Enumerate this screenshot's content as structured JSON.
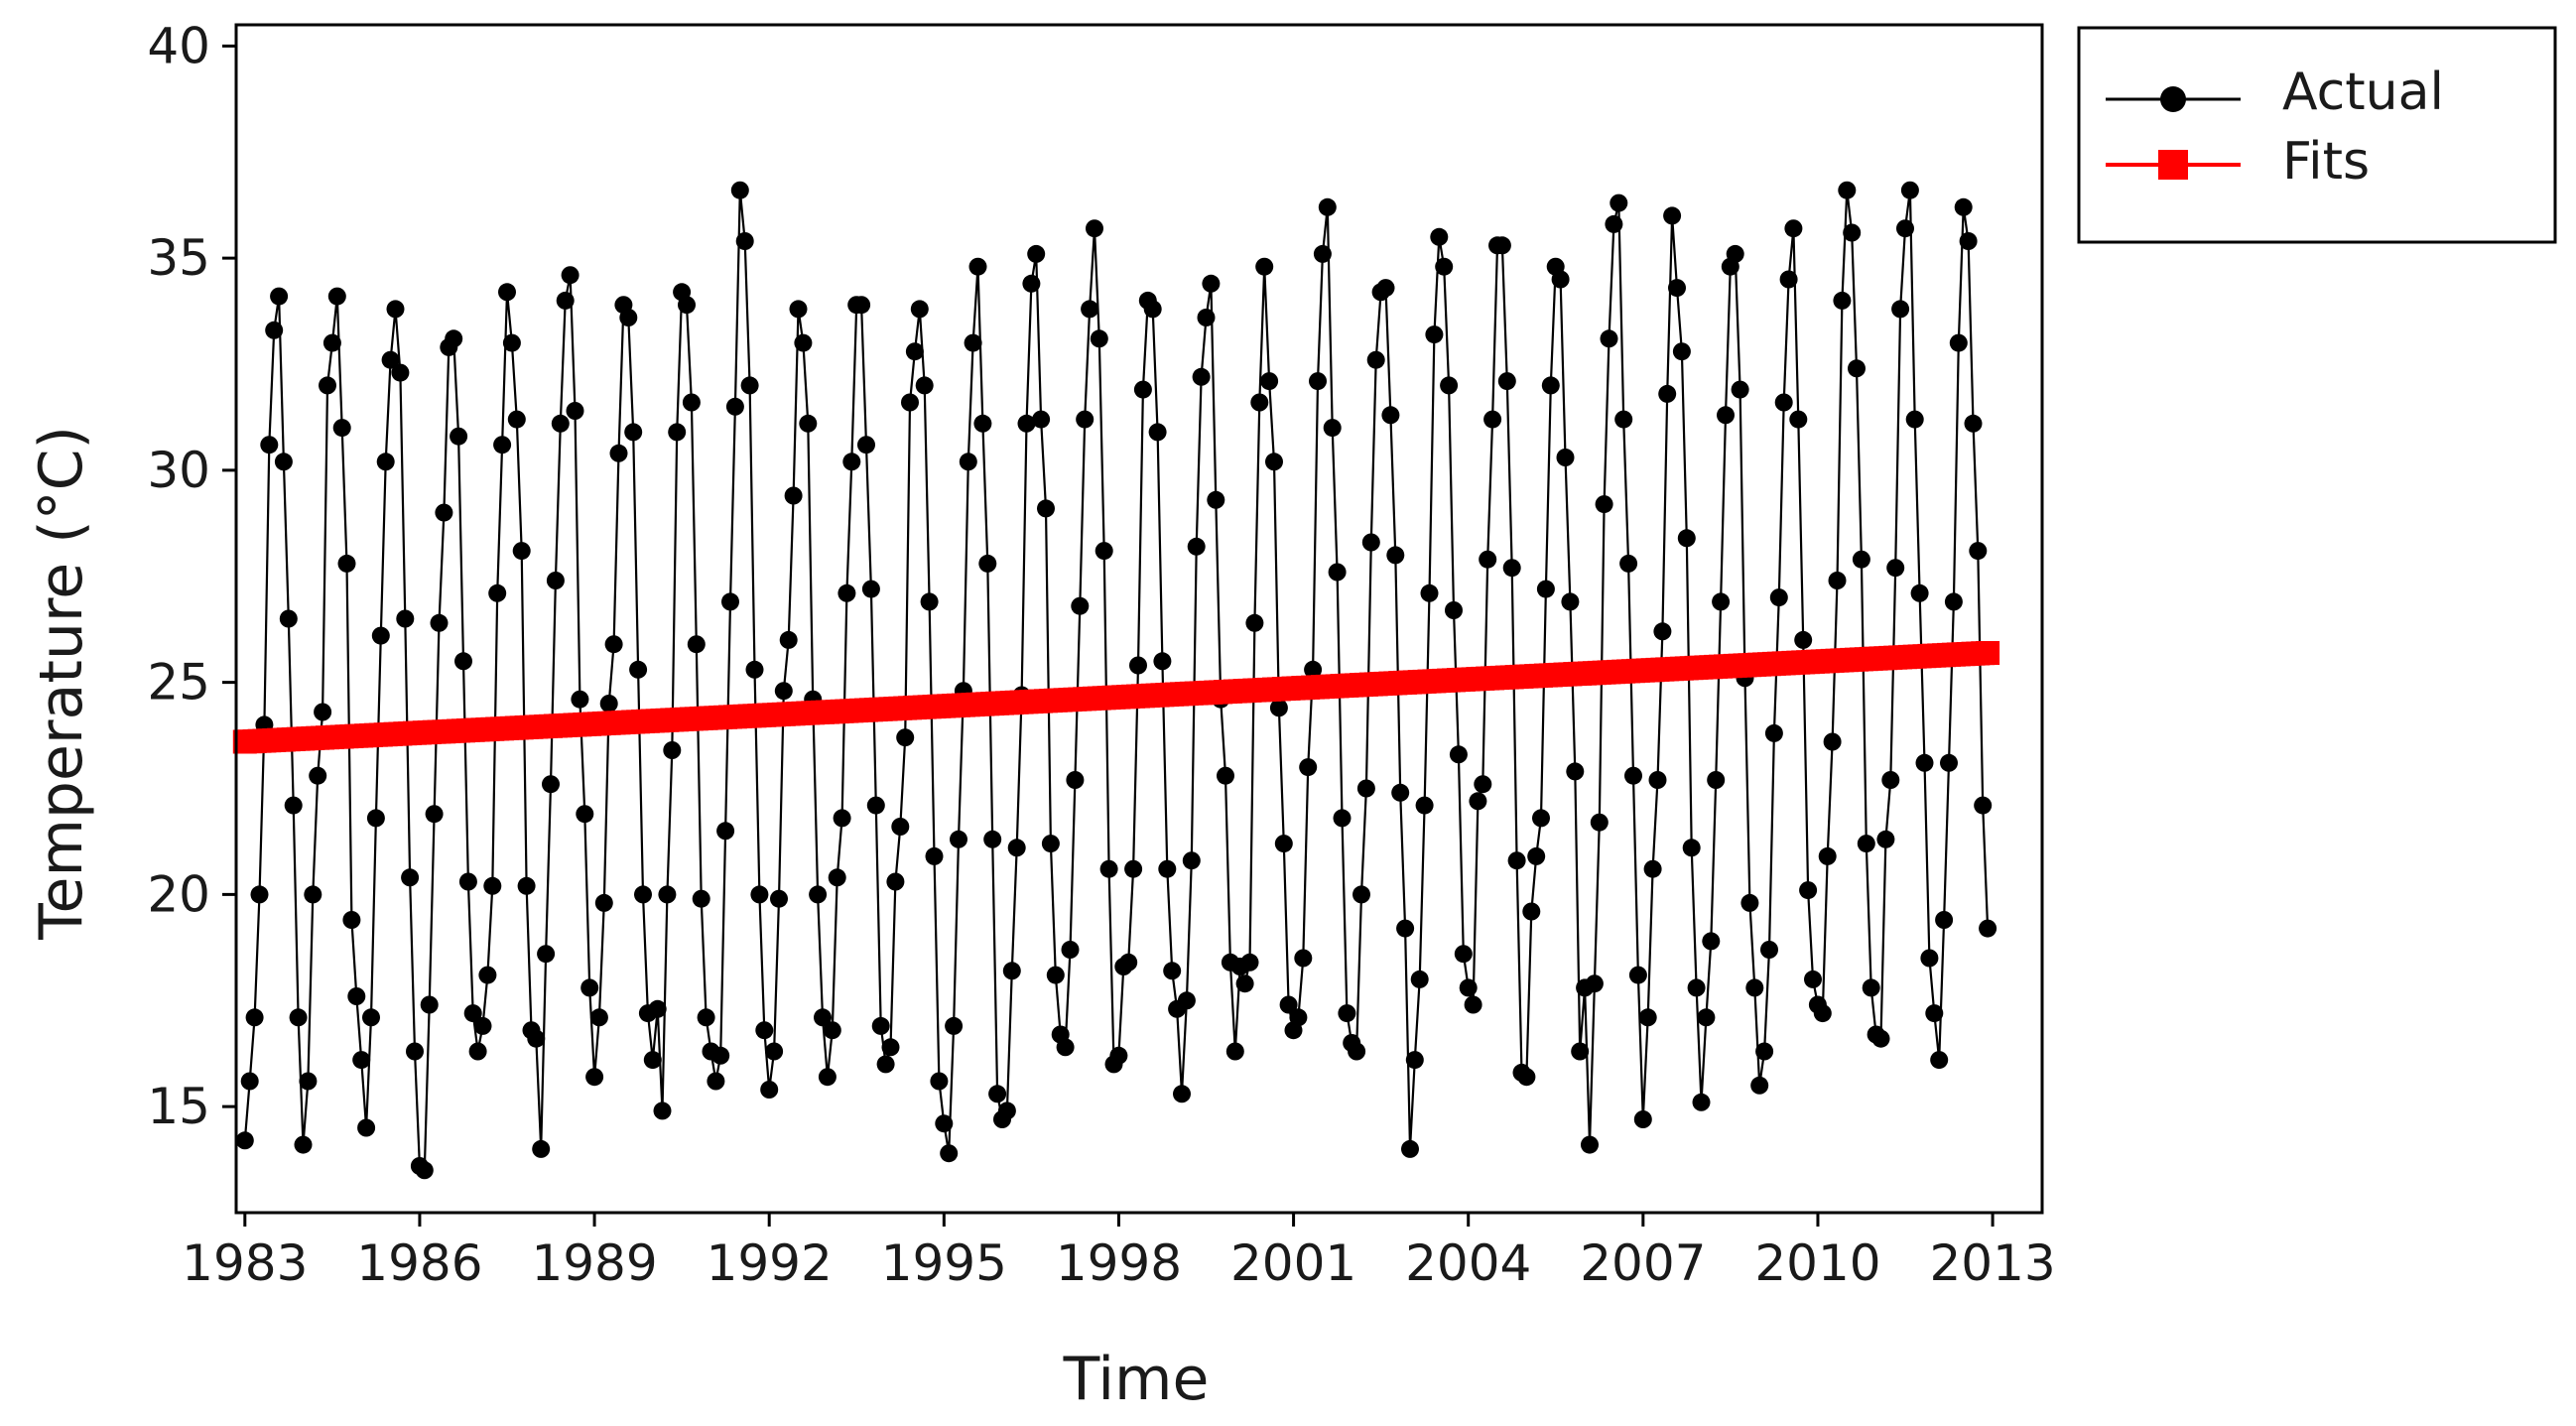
{
  "chart_data": {
    "type": "line",
    "title": "",
    "xlabel": "Time",
    "ylabel": "Temperature (°C)",
    "xlim": [
      1982.85,
      2013.85
    ],
    "ylim": [
      12.5,
      40.5
    ],
    "grid": false,
    "legend_position": "top-right (outside plot)",
    "x_ticks": [
      1983,
      1986,
      1989,
      1992,
      1995,
      1998,
      2001,
      2004,
      2007,
      2010,
      2013
    ],
    "x_tick_labels": [
      "1983",
      "1986",
      "1989",
      "1992",
      "1995",
      "1998",
      "2001",
      "2004",
      "2007",
      "2010",
      "2013"
    ],
    "y_ticks": [
      15,
      20,
      25,
      30,
      35,
      40
    ],
    "y_tick_labels": [
      "15",
      "20",
      "25",
      "30",
      "35",
      "40"
    ],
    "x_start": 1983.0,
    "x_step": 0.08333,
    "series": [
      {
        "name": "Actual",
        "color": "#000000",
        "marker": "circle",
        "values_by_year": [
          [
            14.2,
            15.6,
            17.1,
            20.0,
            24.0,
            30.6,
            33.3,
            34.1,
            30.2,
            26.5,
            22.1,
            17.1
          ],
          [
            14.1,
            15.6,
            20.0,
            22.8,
            24.3,
            32.0,
            33.0,
            34.1,
            31.0,
            27.8,
            19.4,
            17.6
          ],
          [
            16.1,
            14.5,
            17.1,
            21.8,
            26.1,
            30.2,
            32.6,
            33.8,
            32.3,
            26.5,
            20.4,
            16.3
          ],
          [
            13.6,
            13.5,
            17.4,
            21.9,
            26.4,
            29.0,
            32.9,
            33.1,
            30.8,
            25.5,
            20.3,
            17.2
          ],
          [
            16.3,
            16.9,
            18.1,
            20.2,
            27.1,
            30.6,
            34.2,
            33.0,
            31.2,
            28.1,
            20.2,
            16.8
          ],
          [
            16.6,
            14.0,
            18.6,
            22.6,
            27.4,
            31.1,
            34.0,
            34.6,
            31.4,
            24.6,
            21.9,
            17.8
          ],
          [
            15.7,
            17.1,
            19.8,
            24.5,
            25.9,
            30.4,
            33.9,
            33.6,
            30.9,
            25.3,
            20.0,
            17.2
          ],
          [
            16.1,
            17.3,
            14.9,
            20.0,
            23.4,
            30.9,
            34.2,
            33.9,
            31.6,
            25.9,
            19.9,
            17.1
          ],
          [
            16.3,
            15.6,
            16.2,
            21.5,
            26.9,
            31.5,
            36.6,
            35.4,
            32.0,
            25.3,
            20.0,
            16.8
          ],
          [
            15.4,
            16.3,
            19.9,
            24.8,
            26.0,
            29.4,
            33.8,
            33.0,
            31.1,
            24.6,
            20.0,
            17.1
          ],
          [
            15.7,
            16.8,
            20.4,
            21.8,
            27.1,
            30.2,
            33.9,
            33.9,
            30.6,
            27.2,
            22.1,
            16.9
          ],
          [
            16.0,
            16.4,
            20.3,
            21.6,
            23.7,
            31.6,
            32.8,
            33.8,
            32.0,
            26.9,
            20.9,
            15.6
          ],
          [
            14.6,
            13.9,
            16.9,
            21.3,
            24.8,
            30.2,
            33.0,
            34.8,
            31.1,
            27.8,
            21.3,
            15.3
          ],
          [
            14.7,
            14.9,
            18.2,
            21.1,
            24.7,
            31.1,
            34.4,
            35.1,
            31.2,
            29.1,
            21.2,
            18.1
          ],
          [
            16.7,
            16.4,
            18.7,
            22.7,
            26.8,
            31.2,
            33.8,
            35.7,
            33.1,
            28.1,
            20.6,
            16.0
          ],
          [
            16.2,
            18.3,
            18.4,
            20.6,
            25.4,
            31.9,
            34.0,
            33.8,
            30.9,
            25.5,
            20.6,
            18.2
          ],
          [
            17.3,
            15.3,
            17.5,
            20.8,
            28.2,
            32.2,
            33.6,
            34.4,
            29.3,
            24.6,
            22.8,
            18.4
          ],
          [
            16.3,
            18.3,
            17.9,
            18.4,
            26.4,
            31.6,
            34.8,
            32.1,
            30.2,
            24.4,
            21.2,
            17.4
          ],
          [
            16.8,
            17.1,
            18.5,
            23.0,
            25.3,
            32.1,
            35.1,
            36.2,
            31.0,
            27.6,
            21.8,
            17.2
          ],
          [
            16.5,
            16.3,
            20.0,
            22.5,
            28.3,
            32.6,
            34.2,
            34.3,
            31.3,
            28.0,
            22.4,
            19.2
          ],
          [
            14.0,
            16.1,
            18.0,
            22.1,
            27.1,
            33.2,
            35.5,
            34.8,
            32.0,
            26.7,
            23.3,
            18.6
          ],
          [
            17.8,
            17.4,
            22.2,
            22.6,
            27.9,
            31.2,
            35.3,
            35.3,
            32.1,
            27.7,
            20.8,
            15.8
          ],
          [
            15.7,
            19.6,
            20.9,
            21.8,
            27.2,
            32.0,
            34.8,
            34.5,
            30.3,
            26.9,
            22.9,
            16.3
          ],
          [
            17.8,
            14.1,
            17.9,
            21.7,
            29.2,
            33.1,
            35.8,
            36.3,
            31.2,
            27.8,
            22.8,
            18.1
          ],
          [
            14.7,
            17.1,
            20.6,
            22.7,
            26.2,
            31.8,
            36.0,
            34.3,
            32.8,
            28.4,
            21.1,
            17.8
          ],
          [
            15.1,
            17.1,
            18.9,
            22.7,
            26.9,
            31.3,
            34.8,
            35.1,
            31.9,
            25.1,
            19.8,
            17.8
          ],
          [
            15.5,
            16.3,
            18.7,
            23.8,
            27.0,
            31.6,
            34.5,
            35.7,
            31.2,
            26.0,
            20.1,
            18.0
          ],
          [
            17.4,
            17.2,
            20.9,
            23.6,
            27.4,
            34.0,
            36.6,
            35.6,
            32.4,
            27.9,
            21.2,
            17.8
          ],
          [
            16.7,
            16.6,
            21.3,
            22.7,
            27.7,
            33.8,
            35.7,
            36.6,
            31.2,
            27.1,
            23.1,
            18.5
          ],
          [
            17.2,
            16.1,
            19.4,
            23.1,
            26.9,
            33.0,
            36.2,
            35.4,
            31.1,
            28.1,
            22.1,
            19.2
          ]
        ]
      },
      {
        "name": "Fits",
        "color": "#ff0000",
        "marker": "square",
        "linear_fit": {
          "x": [
            1983.0,
            2013.0
          ],
          "y": [
            23.6,
            25.7
          ]
        }
      }
    ]
  },
  "legend": {
    "items": [
      {
        "label": "Actual",
        "color": "#000000",
        "marker": "circle"
      },
      {
        "label": "Fits",
        "color": "#ff0000",
        "marker": "square"
      }
    ]
  }
}
